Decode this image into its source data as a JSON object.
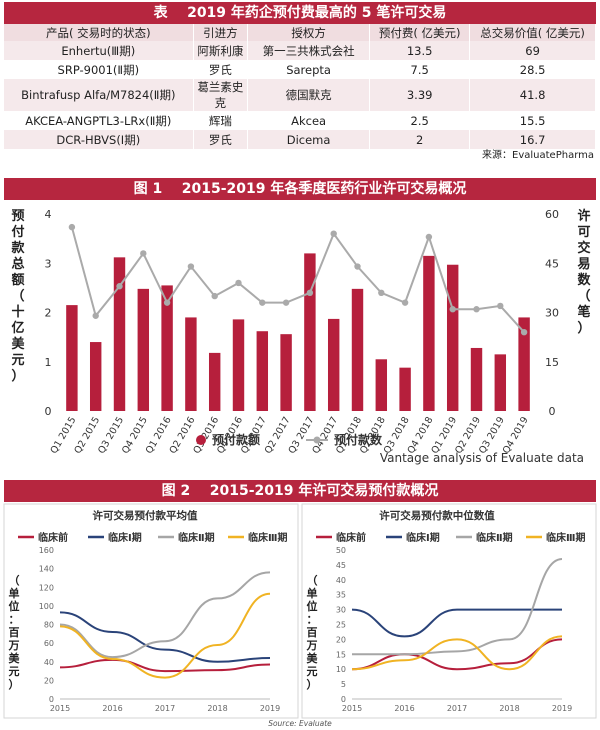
{
  "table": {
    "title": "表    2019 年药企预付费最高的 5 笔许可交易",
    "headers": [
      "产品( 交易时的状态)",
      "引进方",
      "授权方",
      "预付费( 亿美元)",
      "总交易价值( 亿美元)"
    ],
    "rows": [
      [
        "Enhertu(Ⅲ期)",
        "阿斯利康",
        "第一三共株式会社",
        "13.5",
        "69"
      ],
      [
        "SRP-9001(Ⅱ期)",
        "罗氏",
        "Sarepta",
        "7.5",
        "28.5"
      ],
      [
        "Bintrafusp Alfa/M7824(Ⅱ期)",
        "葛兰素史克",
        "德国默克",
        "3.39",
        "41.8"
      ],
      [
        "AKCEA-ANGPTL3-LRx(Ⅱ期)",
        "辉瑞",
        "Akcea",
        "2.5",
        "15.5"
      ],
      [
        "DCR-HBVS(Ⅰ期)",
        "罗氏",
        "Dicema",
        "2",
        "16.7"
      ]
    ],
    "source": "来源：EvaluatePharma"
  },
  "fig1": {
    "title": "图 1    2015-2019 年各季度医药行业许可交易概况",
    "note": "Vantage analysis of Evaluate data"
  },
  "fig2": {
    "title": "图 2    2015-2019 年许可交易预付款概况",
    "source": "Source: Evaluate"
  },
  "colors": {
    "banner": "#b6263f",
    "bar": "#b61f3c",
    "line1": "#aaaaaa",
    "pre": "#b61f3c",
    "p1": "#2a4379",
    "p2": "#a6a6a6",
    "p3": "#f0b323"
  },
  "chart_data": [
    {
      "type": "bar",
      "categories": [
        "Q1 2015",
        "Q2 2015",
        "Q3 2015",
        "Q4 2015",
        "Q1 2016",
        "Q2 2016",
        "Q3 2016",
        "Q4 2016",
        "Q1 2017",
        "Q2 2017",
        "Q3 2017",
        "Q4 2017",
        "Q1 2018",
        "Q2 2018",
        "Q3 2018",
        "Q4 2018",
        "Q1 2019",
        "Q2 2019",
        "Q3 2019",
        "Q4 2019"
      ],
      "series": [
        {
          "name": "预付款额",
          "type": "bar",
          "axis": "left",
          "values": [
            2.15,
            1.4,
            3.12,
            2.48,
            2.55,
            1.9,
            1.18,
            1.86,
            1.62,
            1.56,
            3.2,
            1.87,
            2.48,
            1.05,
            0.88,
            3.15,
            2.97,
            1.28,
            1.15,
            1.9
          ]
        },
        {
          "name": "预付款数",
          "type": "line",
          "axis": "right",
          "values": [
            56,
            29,
            38,
            48,
            33,
            44,
            35,
            39,
            33,
            33,
            36,
            54,
            44,
            36,
            33,
            53,
            31,
            31,
            32,
            24
          ]
        }
      ],
      "ylabel": "预付款总额（十亿美元）",
      "y2label": "许可交易数（笔）",
      "ylim": [
        0,
        4
      ],
      "y2lim": [
        0,
        60
      ],
      "yticks": [
        0,
        1,
        2,
        3,
        4
      ],
      "y2ticks": [
        0,
        15,
        30,
        45,
        60
      ],
      "legend": "bottom"
    },
    {
      "type": "line",
      "title": "许可交易预付款平均值",
      "x": [
        "2015",
        "2016",
        "2017",
        "2018",
        "2019"
      ],
      "series": [
        {
          "name": "临床前",
          "values": [
            34,
            42,
            30,
            31,
            37
          ]
        },
        {
          "name": "临床Ⅰ期",
          "values": [
            93,
            72,
            53,
            40,
            44
          ]
        },
        {
          "name": "临床Ⅱ期",
          "values": [
            80,
            45,
            62,
            108,
            136
          ]
        },
        {
          "name": "临床Ⅲ期",
          "values": [
            78,
            43,
            23,
            58,
            113
          ]
        }
      ],
      "ylabel": "（单位：百万美元）",
      "ylim": [
        0,
        160
      ],
      "yticks": [
        0,
        20,
        40,
        60,
        80,
        100,
        120,
        140,
        160
      ],
      "legend": "top"
    },
    {
      "type": "line",
      "title": "许可交易预付款中位数值",
      "x": [
        "2015",
        "2016",
        "2017",
        "2018",
        "2019"
      ],
      "series": [
        {
          "name": "临床前",
          "values": [
            10,
            15,
            10,
            12,
            20
          ]
        },
        {
          "name": "临床Ⅰ期",
          "values": [
            30,
            21,
            30,
            30,
            30
          ]
        },
        {
          "name": "临床Ⅱ期",
          "values": [
            15,
            15,
            16,
            20,
            47
          ]
        },
        {
          "name": "临床Ⅲ期",
          "values": [
            10,
            13,
            20,
            10,
            21
          ]
        }
      ],
      "ylabel": "（单位：百万美元）",
      "ylim": [
        0,
        50
      ],
      "yticks": [
        0,
        5,
        10,
        15,
        20,
        25,
        30,
        35,
        40,
        45,
        50
      ],
      "legend": "top"
    }
  ]
}
